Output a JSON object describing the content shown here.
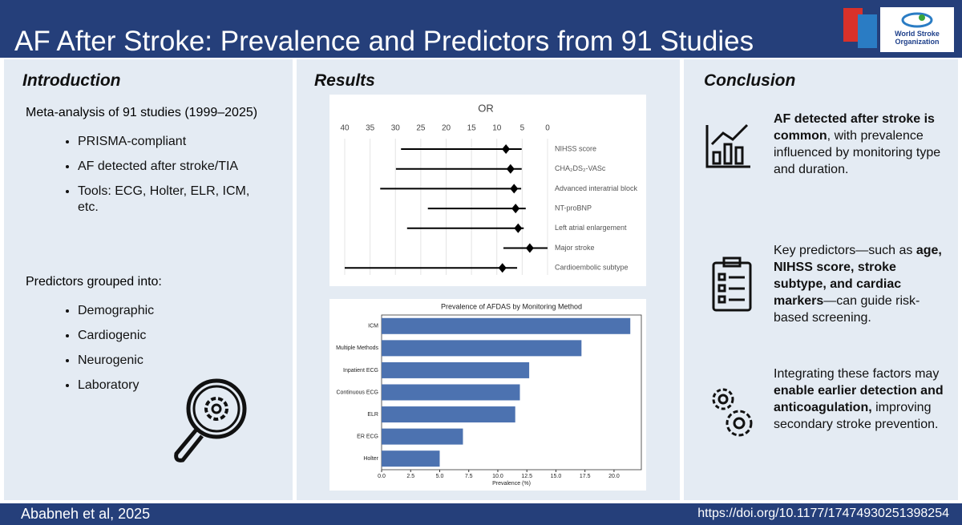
{
  "header": {
    "title": "AF After Stroke: Prevalence and Predictors from 91 Studies",
    "logo_text": [
      "World Stroke",
      "Organization"
    ]
  },
  "introduction": {
    "heading": "Introduction",
    "lead": "Meta-analysis of 91 studies (1999–2025)",
    "bullets": [
      "PRISMA-compliant",
      "AF detected after stroke/TIA",
      "Tools: ECG, Holter, ELR, ICM, etc."
    ],
    "predictors_lead": "Predictors grouped into:",
    "predictor_bullets": [
      "Demographic",
      "Cardiogenic",
      "Neurogenic",
      "Laboratory"
    ]
  },
  "results": {
    "heading": "Results"
  },
  "chart_data": [
    {
      "type": "forest",
      "title": "OR",
      "categories": [
        "NIHSS score",
        "CHA₂DS₂-VASc",
        "Advanced interatrial block",
        "NT-proBNP",
        "Left atrial enlargement",
        "Major stroke",
        "Cardioembolic subtype"
      ],
      "values": [
        8.2,
        7.3,
        6.6,
        6.3,
        5.8,
        3.5,
        8.9
      ],
      "lower": [
        5.1,
        5.1,
        5.2,
        4.3,
        4.7,
        0,
        6.0
      ],
      "upper": [
        28.9,
        29.9,
        33.0,
        23.6,
        27.7,
        8.7,
        40
      ],
      "xlim": [
        40,
        0
      ],
      "xticks": [
        40,
        35,
        30,
        25,
        20,
        15,
        10,
        5,
        0
      ],
      "grid": true,
      "color": "#000000"
    },
    {
      "type": "hbar",
      "title": "Prevalence of AFDAS by Monitoring Method",
      "x_label": "Prevalence (%)",
      "categories": [
        "ICM",
        "Multiple Methods",
        "Inpatient ECG",
        "Continuous ECG",
        "ELR",
        "ER ECG",
        "Holter"
      ],
      "values": [
        21.4,
        17.2,
        12.7,
        11.9,
        11.5,
        7.0,
        5.0
      ],
      "color": "#4c72b0",
      "xlim": [
        0,
        22.35
      ],
      "xticks": [
        {
          "value": 0,
          "label": "0.0"
        },
        {
          "value": 2.5,
          "label": "2.5"
        },
        {
          "value": 5,
          "label": "5.0"
        },
        {
          "value": 7.5,
          "label": "7.5"
        },
        {
          "value": 10,
          "label": "10.0"
        },
        {
          "value": 12.5,
          "label": "12.5"
        },
        {
          "value": 15,
          "label": "15.0"
        },
        {
          "value": 17.5,
          "label": "17.5"
        },
        {
          "value": 20,
          "label": "20.0"
        }
      ]
    }
  ],
  "conclusion": {
    "heading": "Conclusion",
    "items": [
      [
        {
          "text": "AF detected after stroke is common",
          "bold": true
        },
        {
          "text": ", with prevalence influenced by monitoring type and duration.",
          "bold": false
        }
      ],
      [
        {
          "text": "Key predictors—such as ",
          "bold": false
        },
        {
          "text": "age, NIHSS score, stroke subtype, and cardiac markers",
          "bold": true
        },
        {
          "text": "—can guide risk-based screening.",
          "bold": false
        }
      ],
      [
        {
          "text": "Integrating these factors may ",
          "bold": false
        },
        {
          "text": "enable earlier detection and anticoagulation,",
          "bold": true
        },
        {
          "text": " improving secondary stroke prevention.",
          "bold": false
        }
      ]
    ]
  },
  "footer": {
    "citation": "Ababneh et al, 2025",
    "doi": "https://doi.org/10.1177/17474930251398254"
  }
}
